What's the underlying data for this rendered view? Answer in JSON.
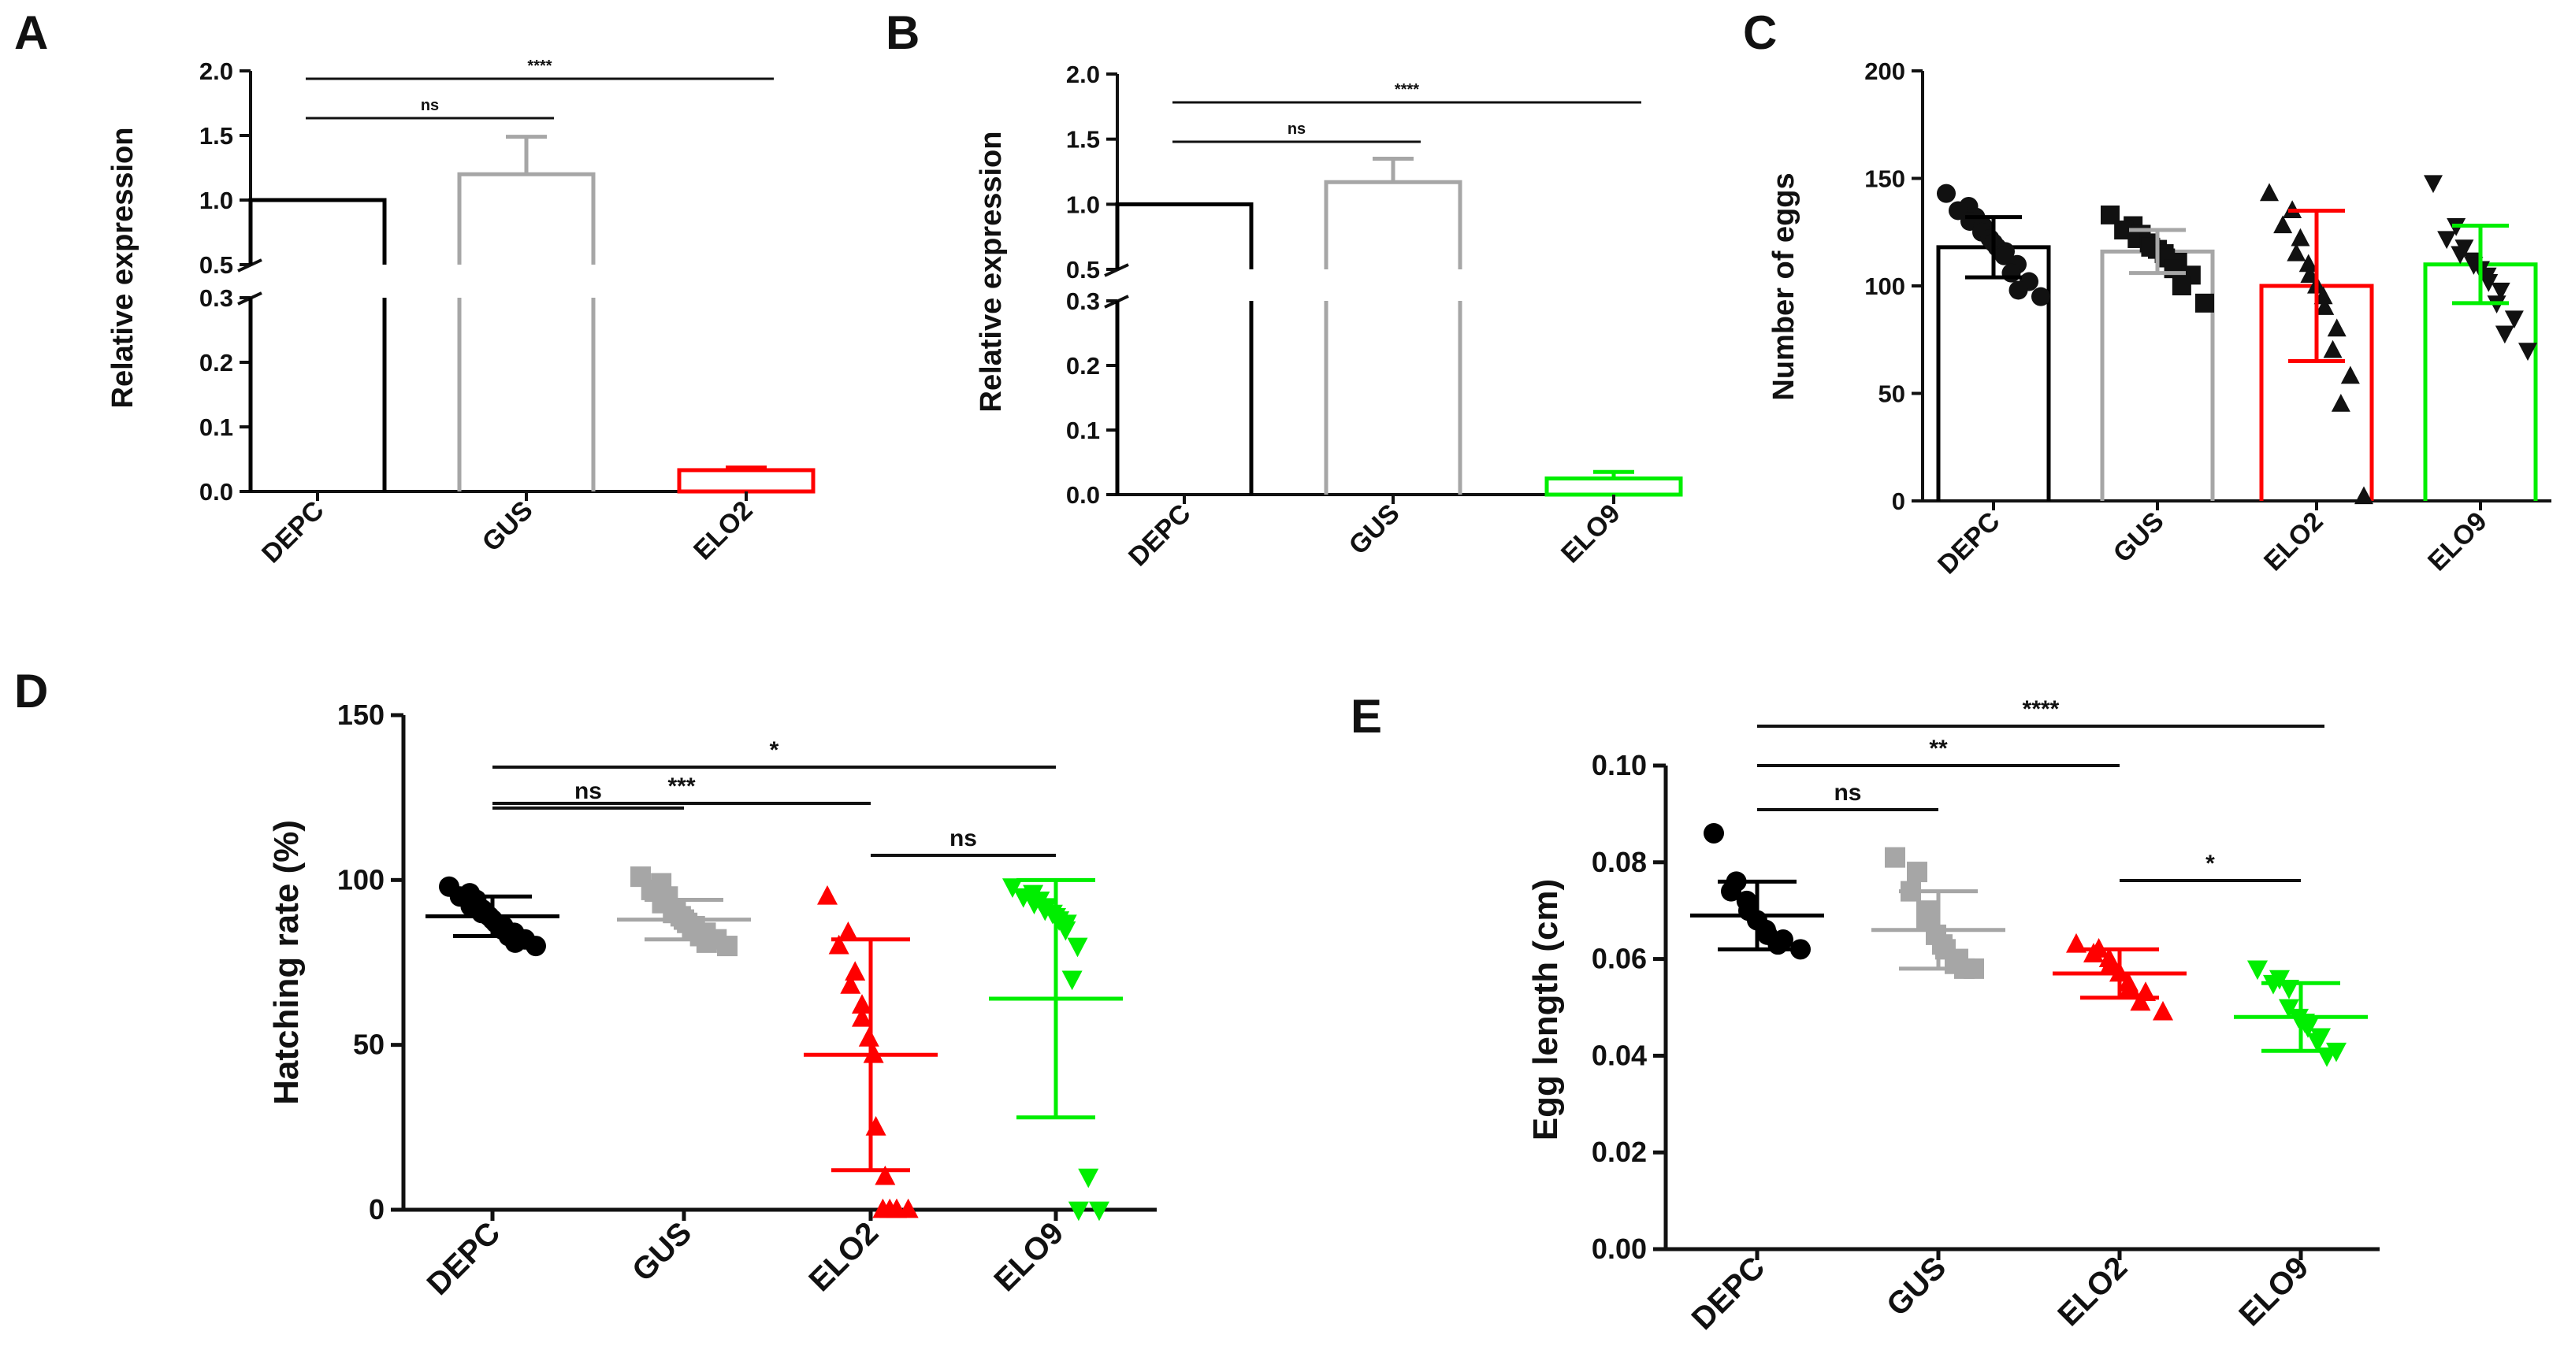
{
  "colors": {
    "DEPC": "#000000",
    "GUS": "#a6a6a6",
    "ELO2": "#ff0000",
    "ELO9": "#00ee00",
    "axis": "#111111"
  },
  "chart_data": [
    {
      "panel": "A",
      "type": "bar",
      "ylabel": "Relative expression",
      "broken_axis": true,
      "ylim_lower": [
        0,
        0.3
      ],
      "ylim_upper": [
        0.5,
        2.0
      ],
      "ticks_lower": [
        "0.0",
        "0.1",
        "0.2",
        "0.3"
      ],
      "ticks_upper": [
        "0.5",
        "1.0",
        "1.5",
        "2.0"
      ],
      "categories": [
        "DEPC",
        "GUS",
        "ELO2"
      ],
      "values": [
        1.0,
        1.2,
        0.033
      ],
      "errors": [
        0,
        0.29,
        0.004
      ],
      "bar_colors": [
        "DEPC",
        "GUS",
        "ELO2"
      ],
      "significance": [
        {
          "from": 0,
          "to": 1,
          "label": "ns"
        },
        {
          "from": 0,
          "to": 2,
          "label": "****"
        }
      ]
    },
    {
      "panel": "B",
      "type": "bar",
      "ylabel": "Relative expression",
      "broken_axis": true,
      "ylim_lower": [
        0,
        0.3
      ],
      "ylim_upper": [
        0.5,
        2.0
      ],
      "ticks_lower": [
        "0.0",
        "0.1",
        "0.2",
        "0.3"
      ],
      "ticks_upper": [
        "0.5",
        "1.0",
        "1.5",
        "2.0"
      ],
      "categories": [
        "DEPC",
        "GUS",
        "ELO9"
      ],
      "values": [
        1.0,
        1.17,
        0.025
      ],
      "errors": [
        0,
        0.18,
        0.01
      ],
      "bar_colors": [
        "DEPC",
        "GUS",
        "ELO9"
      ],
      "significance": [
        {
          "from": 0,
          "to": 1,
          "label": "ns"
        },
        {
          "from": 0,
          "to": 2,
          "label": "****"
        }
      ]
    },
    {
      "panel": "C",
      "type": "bar",
      "ylabel": "Number of eggs",
      "ylim": [
        0,
        200
      ],
      "ticks": [
        "0",
        "50",
        "100",
        "150",
        "200"
      ],
      "categories": [
        "DEPC",
        "GUS",
        "ELO2",
        "ELO9"
      ],
      "values": [
        118,
        116,
        100,
        110
      ],
      "errors": [
        14,
        10,
        35,
        18
      ],
      "bar_colors": [
        "DEPC",
        "GUS",
        "ELO2",
        "ELO9"
      ],
      "markers": [
        "circle",
        "square",
        "triangle-up",
        "triangle-down"
      ],
      "points": [
        [
          143,
          137,
          135,
          132,
          130,
          128,
          125,
          122,
          120,
          118,
          116,
          114,
          110,
          106,
          102,
          98,
          95
        ],
        [
          133,
          128,
          126,
          124,
          122,
          120,
          118,
          117,
          115,
          113,
          111,
          108,
          105,
          100,
          92
        ],
        [
          143,
          135,
          128,
          122,
          115,
          110,
          105,
          100,
          95,
          90,
          80,
          70,
          58,
          45,
          2
        ],
        [
          148,
          128,
          122,
          118,
          115,
          112,
          110,
          108,
          105,
          102,
          98,
          92,
          85,
          78,
          70
        ]
      ]
    },
    {
      "panel": "D",
      "type": "scatter",
      "ylabel": "Hatching rate (%)",
      "ylim": [
        0,
        150
      ],
      "ticks": [
        "0",
        "50",
        "100",
        "150"
      ],
      "categories": [
        "DEPC",
        "GUS",
        "ELO2",
        "ELO9"
      ],
      "means": [
        89,
        88,
        47,
        64
      ],
      "sd": [
        6,
        6,
        35,
        36
      ],
      "markers": [
        "circle",
        "square",
        "triangle-up",
        "triangle-down"
      ],
      "points": [
        [
          98,
          96,
          95,
          94,
          92,
          91,
          90,
          89,
          88,
          87,
          86,
          85,
          84,
          83,
          82,
          81,
          80
        ],
        [
          101,
          99,
          97,
          95,
          93,
          91,
          90,
          89,
          88,
          87,
          86,
          85,
          84,
          83,
          82,
          81,
          80
        ],
        [
          95,
          84,
          80,
          72,
          68,
          62,
          58,
          52,
          47,
          25,
          10,
          0,
          0,
          0,
          0,
          0
        ],
        [
          98,
          96,
          95,
          94,
          93,
          92,
          91,
          90,
          89,
          88,
          87,
          85,
          80,
          70,
          10,
          0,
          0
        ]
      ],
      "significance": [
        {
          "from": 0,
          "to": 1,
          "label": "ns"
        },
        {
          "from": 0,
          "to": 2,
          "label": "***"
        },
        {
          "from": 0,
          "to": 3,
          "label": "*"
        },
        {
          "from": 2,
          "to": 3,
          "label": "ns"
        }
      ]
    },
    {
      "panel": "E",
      "type": "scatter",
      "ylabel": "Egg length (cm)",
      "ylim": [
        0,
        0.1
      ],
      "ticks": [
        "0.00",
        "0.02",
        "0.04",
        "0.06",
        "0.08",
        "0.10"
      ],
      "categories": [
        "DEPC",
        "GUS",
        "ELO2",
        "ELO9"
      ],
      "means": [
        0.069,
        0.066,
        0.057,
        0.048
      ],
      "sd": [
        0.007,
        0.008,
        0.005,
        0.007
      ],
      "markers": [
        "circle",
        "square",
        "triangle-up",
        "triangle-down"
      ],
      "points": [
        [
          0.086,
          0.076,
          0.074,
          0.072,
          0.07,
          0.068,
          0.066,
          0.065,
          0.064,
          0.063,
          0.062
        ],
        [
          0.081,
          0.078,
          0.074,
          0.07,
          0.068,
          0.065,
          0.063,
          0.062,
          0.06,
          0.059,
          0.058,
          0.058
        ],
        [
          0.063,
          0.062,
          0.061,
          0.06,
          0.059,
          0.057,
          0.055,
          0.054,
          0.053,
          0.051,
          0.049
        ],
        [
          0.058,
          0.056,
          0.055,
          0.054,
          0.05,
          0.048,
          0.047,
          0.046,
          0.044,
          0.043,
          0.041,
          0.04
        ]
      ],
      "significance": [
        {
          "from": 0,
          "to": 1,
          "label": "ns"
        },
        {
          "from": 0,
          "to": 2,
          "label": "**"
        },
        {
          "from": 0,
          "to": 3,
          "label": "****"
        },
        {
          "from": 2,
          "to": 3,
          "label": "*"
        }
      ]
    }
  ]
}
